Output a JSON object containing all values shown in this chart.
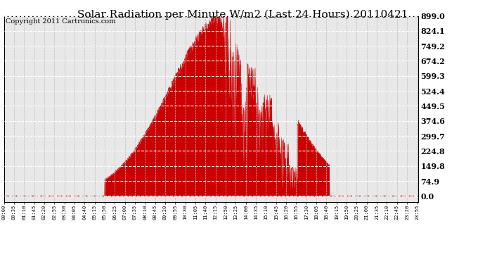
{
  "title": "Solar Radiation per Minute W/m2 (Last 24 Hours) 20110421",
  "copyright": "Copyright 2011 Cartronics.com",
  "y_tick_values": [
    0.0,
    74.9,
    149.8,
    224.8,
    299.7,
    374.6,
    449.5,
    524.4,
    599.3,
    674.2,
    749.2,
    824.1,
    899.0
  ],
  "ymax": 899.0,
  "ymin": 0.0,
  "fill_color": "#cc0000",
  "line_color": "#cc0000",
  "dashed_line_color": "#cc0000",
  "grid_h_color": "#ffffff",
  "grid_v_color": "#bbbbbb",
  "background_color": "#ffffff",
  "plot_bg_color": "#e8e8e8",
  "title_fontsize": 11,
  "copyright_fontsize": 7,
  "ytick_fontsize": 8,
  "xtick_fontsize": 5
}
